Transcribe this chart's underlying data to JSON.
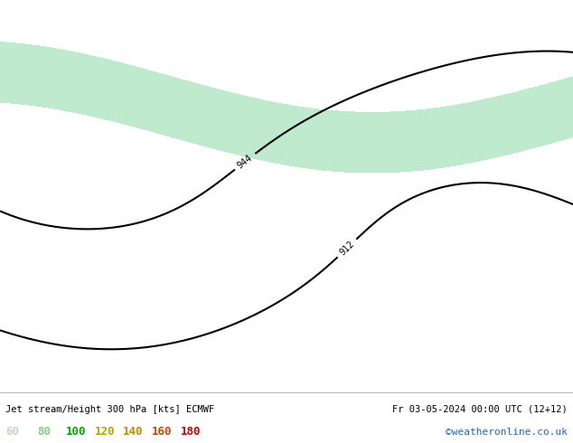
{
  "title_left": "Jet stream/Height 300 hPa [kts] ECMWF",
  "title_right": "Fr 03-05-2024 00:00 UTC (12+12)",
  "credit": "©weatheronline.co.uk",
  "legend_values": [
    "60",
    "80",
    "100",
    "120",
    "140",
    "160",
    "180"
  ],
  "legend_text_colors": [
    "#bbddbb",
    "#88cc88",
    "#00aa00",
    "#aaaa00",
    "#cc8800",
    "#cc4400",
    "#cc0000"
  ],
  "figsize": [
    6.34,
    4.9
  ],
  "dpi": 100,
  "lon_min": 20,
  "lon_max": 120,
  "lat_min": 5,
  "lat_max": 60,
  "land_color": "#c8e8a0",
  "sea_color": "#ddeedd",
  "fill_colors": [
    "#b8e8c8",
    "#88d4a0",
    "#44bb55",
    "#cccc44",
    "#ddaa22",
    "#dd6622",
    "#cc2222"
  ],
  "fill_levels": [
    60,
    80,
    100,
    120,
    140,
    160,
    180,
    220
  ],
  "contour_color": "black",
  "contour_linewidth": 1.5,
  "border_color": "#aaaaaa",
  "border_linewidth": 0.4,
  "coast_linewidth": 0.6
}
